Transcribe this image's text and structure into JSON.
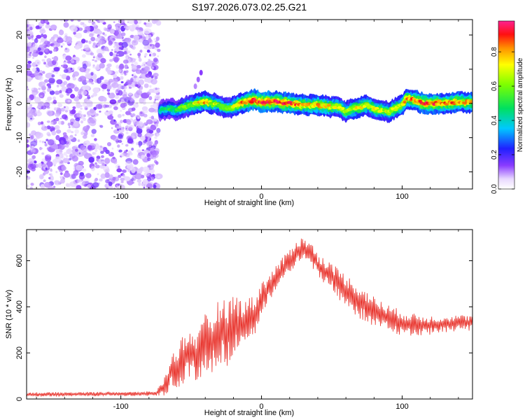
{
  "chart_data": [
    {
      "type": "heatmap",
      "title": "S197.2026.073.02.25.G21",
      "xlabel": "Height of straight line (km)",
      "ylabel": "Frequency (Hz)",
      "xlim": [
        -167,
        150
      ],
      "ylim": [
        -25,
        24.5
      ],
      "xticks": [
        -100,
        0,
        100
      ],
      "yticks": [
        -20,
        -10,
        0,
        10,
        20
      ],
      "xtick_labels": [
        "-100",
        "0",
        "100"
      ],
      "ytick_labels": [
        "-20",
        "-10",
        "0",
        "10",
        "20"
      ],
      "colorbar": {
        "label": "Normalized spectral amplitude",
        "range": [
          0,
          0.98
        ],
        "ticks": [
          0.0,
          0.2,
          0.4,
          0.6,
          0.8
        ],
        "tick_labels": [
          "0.0",
          "0.2",
          "0.4",
          "0.6",
          "0.8"
        ],
        "colormap": "rainbow"
      },
      "noise_region_x": [
        -167,
        -73
      ],
      "ridge": {
        "x": [
          -72,
          -65,
          -60,
          -55,
          -50,
          -45,
          -40,
          -35,
          -30,
          -25,
          -20,
          -15,
          -10,
          -5,
          0,
          10,
          20,
          30,
          40,
          50,
          55,
          60,
          65,
          70,
          75,
          80,
          85,
          90,
          95,
          100,
          103,
          108,
          115,
          120,
          130,
          140,
          150
        ],
        "freq": [
          -2,
          -1.5,
          -2,
          -1,
          -0.5,
          0,
          0.5,
          0,
          -0.5,
          -1.5,
          -1,
          0,
          0.5,
          1,
          0.5,
          0.5,
          0,
          -0.5,
          -0.5,
          -1,
          -1,
          -2.5,
          -1.5,
          -1,
          -0.5,
          -1.5,
          -2,
          -2.5,
          -1.5,
          -0.5,
          1.5,
          1,
          0,
          0,
          0,
          0.5,
          0.3
        ],
        "amplitude": [
          0.45,
          0.5,
          0.55,
          0.6,
          0.65,
          0.75,
          0.8,
          0.7,
          0.65,
          0.6,
          0.7,
          0.8,
          0.9,
          0.95,
          0.95,
          0.95,
          0.9,
          0.8,
          0.8,
          0.75,
          0.7,
          0.65,
          0.7,
          0.75,
          0.7,
          0.75,
          0.7,
          0.7,
          0.7,
          0.75,
          0.8,
          0.85,
          0.9,
          0.9,
          0.85,
          0.85,
          0.8
        ]
      },
      "spur": {
        "x": [
          -47,
          -45,
          -43
        ],
        "freq": [
          5,
          7,
          9
        ]
      }
    },
    {
      "type": "line",
      "title": "",
      "xlabel": "Height of straight line (km)",
      "ylabel": "SNR (10 * v/v)",
      "xlim": [
        -167,
        150
      ],
      "ylim": [
        0,
        735
      ],
      "xticks": [
        -100,
        0,
        100
      ],
      "yticks": [
        0,
        200,
        400,
        600
      ],
      "xtick_labels": [
        "-100",
        "0",
        "100"
      ],
      "ytick_labels": [
        "0",
        "200",
        "400",
        "600"
      ],
      "series": [
        {
          "name": "SNR",
          "color": "#e8312a",
          "x": [
            -167,
            -150,
            -130,
            -110,
            -90,
            -75,
            -68,
            -65,
            -60,
            -55,
            -50,
            -45,
            -40,
            -35,
            -30,
            -25,
            -20,
            -15,
            -10,
            -5,
            0,
            5,
            10,
            15,
            20,
            25,
            30,
            35,
            40,
            50,
            60,
            70,
            80,
            90,
            100,
            110,
            120,
            130,
            140,
            150
          ],
          "mean": [
            20,
            20,
            21,
            22,
            22,
            24,
            60,
            110,
            140,
            180,
            200,
            180,
            250,
            240,
            300,
            280,
            330,
            320,
            350,
            360,
            440,
            480,
            520,
            560,
            600,
            640,
            650,
            630,
            580,
            530,
            470,
            420,
            380,
            350,
            330,
            320,
            320,
            325,
            330,
            330
          ],
          "amp": [
            8,
            8,
            8,
            8,
            8,
            8,
            40,
            60,
            80,
            90,
            90,
            90,
            100,
            110,
            120,
            120,
            110,
            100,
            80,
            70,
            60,
            50,
            50,
            45,
            45,
            45,
            45,
            45,
            45,
            50,
            60,
            60,
            55,
            50,
            45,
            40,
            35,
            30,
            30,
            28
          ]
        }
      ]
    }
  ]
}
